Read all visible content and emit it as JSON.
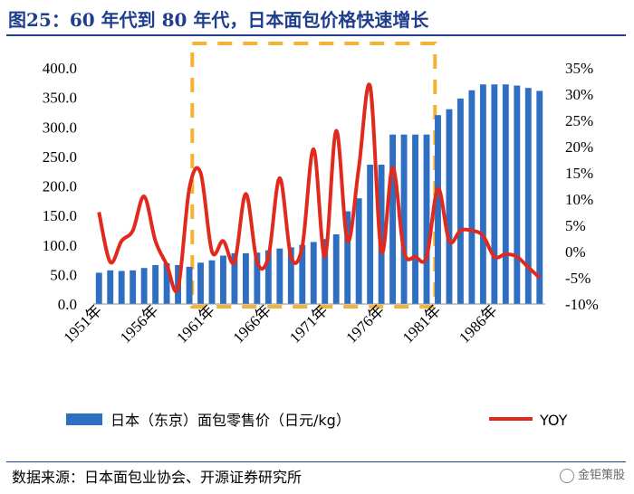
{
  "title": "图25：60 年代到 80 年代，日本面包价格快速增长",
  "source": "数据来源：日本面包业协会、开源证券研究所",
  "watermark": "金钜策股",
  "chart_data": {
    "type": "bar",
    "x": [
      1951,
      1952,
      1953,
      1954,
      1955,
      1956,
      1957,
      1958,
      1959,
      1960,
      1961,
      1962,
      1963,
      1964,
      1965,
      1966,
      1967,
      1968,
      1969,
      1970,
      1971,
      1972,
      1973,
      1974,
      1975,
      1976,
      1977,
      1978,
      1979,
      1980,
      1981,
      1982,
      1983,
      1984,
      1985,
      1986,
      1987,
      1988,
      1989,
      1990
    ],
    "x_tick_labels": [
      "1951年",
      "1956年",
      "1961年",
      "1966年",
      "1971年",
      "1976年",
      "1981年",
      "1986年"
    ],
    "series": [
      {
        "name": "日本（东京）面包零售价（日元/kg）",
        "axis": "left",
        "type": "bar",
        "color": "#2e6fc1",
        "values": [
          53,
          57,
          56,
          57,
          61,
          66,
          69,
          66,
          63,
          70,
          74,
          82,
          86,
          86,
          87,
          91,
          94,
          96,
          100,
          105,
          110,
          118,
          157,
          179,
          236,
          236,
          287,
          287,
          287,
          287,
          320,
          330,
          348,
          362,
          372,
          372,
          372,
          370,
          366,
          361
        ]
      },
      {
        "name": "YOY",
        "axis": "right",
        "type": "line",
        "color": "#e02a1e",
        "values": [
          7.5,
          -2.0,
          2.0,
          4.0,
          10.5,
          2.0,
          -2.5,
          -7.0,
          12.0,
          15.0,
          0.0,
          2.0,
          -2.0,
          11.0,
          -2.0,
          -1.0,
          14.0,
          -1.0,
          1.0,
          19.5,
          -1.0,
          23.0,
          2.0,
          16.0,
          31.5,
          0.0,
          16.0,
          0.0,
          -1.0,
          -1.0,
          12.0,
          2.0,
          4.0,
          4.0,
          3.0,
          -1.0,
          -0.5,
          -1.0,
          -3.0,
          -5.0
        ]
      }
    ],
    "y_left": {
      "range": [
        0,
        400
      ],
      "ticks": [
        "0.0",
        "50.0",
        "100.0",
        "150.0",
        "200.0",
        "250.0",
        "300.0",
        "350.0",
        "400.0"
      ]
    },
    "y_right": {
      "range": [
        -10,
        35
      ],
      "ticks": [
        "-10%",
        "-5%",
        "0%",
        "5%",
        "10%",
        "15%",
        "20%",
        "25%",
        "30%",
        "35%"
      ]
    },
    "highlight": {
      "from": 1960,
      "to": 1980,
      "color": "#f5b335"
    },
    "legend": {
      "position": "bottom"
    }
  }
}
